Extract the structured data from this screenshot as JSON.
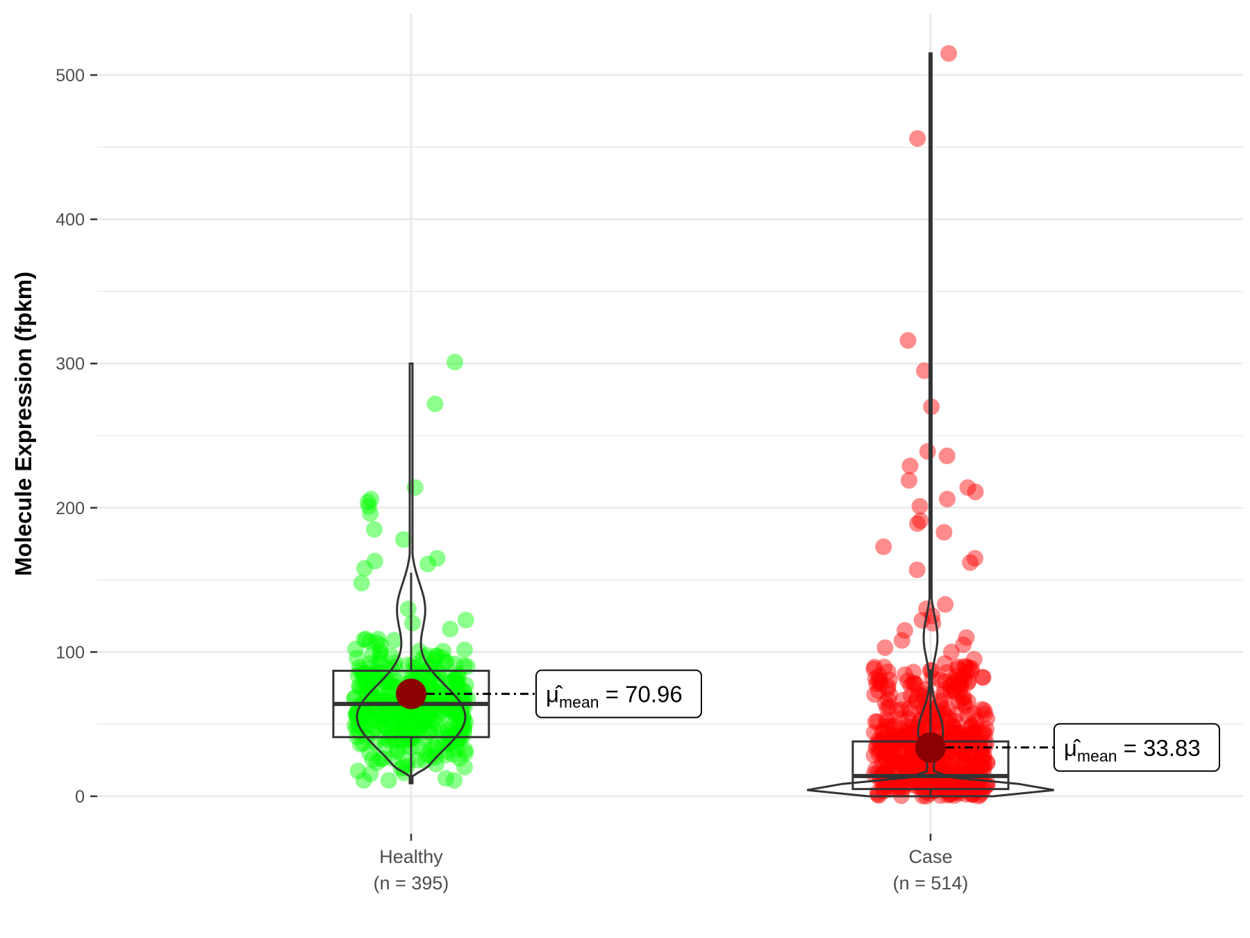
{
  "chart_data": {
    "type": "violin-box-jitter",
    "title": "",
    "xlabel": "",
    "ylabel": "Molecule Expression (fpkm)",
    "ylim": [
      -18,
      535
    ],
    "yticks": [
      0,
      100,
      200,
      300,
      400,
      500
    ],
    "grid": true,
    "legend": "none",
    "groups": [
      {
        "category": "Healthy",
        "n_label": "(n = 395)",
        "n": 395,
        "color": "#00ff00",
        "box": {
          "q1": 41,
          "median": 64,
          "q3": 87,
          "whisker_low": 9,
          "whisker_high": 155
        },
        "violin_range": [
          9,
          300
        ],
        "mean": 70.96,
        "mean_label": "70.96",
        "outliers": [
          301,
          272,
          214,
          206,
          204,
          201,
          196,
          185,
          178,
          165,
          163,
          161,
          158
        ]
      },
      {
        "category": "Case",
        "n_label": "(n = 514)",
        "n": 514,
        "color": "#ff0000",
        "box": {
          "q1": 5,
          "median": 14,
          "q3": 38,
          "whisker_low": 0,
          "whisker_high": 88
        },
        "violin_range": [
          0,
          515
        ],
        "mean": 33.83,
        "mean_label": "33.83",
        "outliers": [
          515,
          456,
          316,
          295,
          270,
          239,
          236,
          229,
          219,
          214,
          211,
          206,
          201,
          191,
          189,
          183,
          173,
          165,
          162,
          157,
          133,
          130,
          125,
          122,
          120,
          115,
          110,
          108,
          105,
          103,
          100,
          95,
          92,
          90
        ]
      }
    ],
    "mean_symbol": "μ̂",
    "mean_subscript": "mean",
    "mean_color": "#8b0000"
  }
}
